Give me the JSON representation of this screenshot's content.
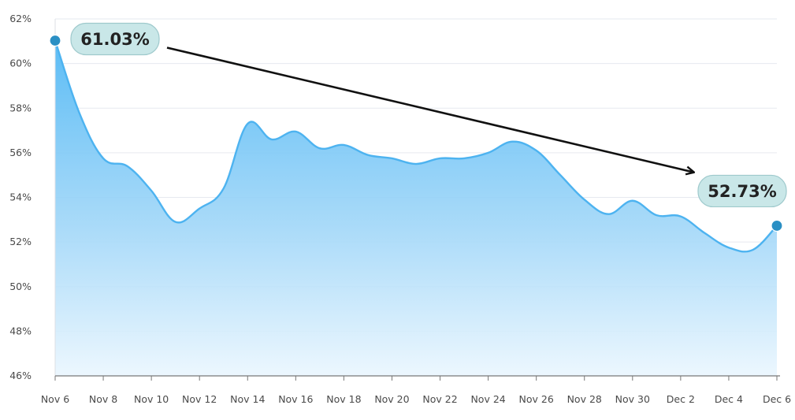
{
  "chart_data": {
    "type": "area",
    "title": "",
    "xlabel": "",
    "ylabel": "",
    "ylim": [
      46,
      62
    ],
    "y_ticks": [
      "46%",
      "48%",
      "50%",
      "52%",
      "54%",
      "56%",
      "58%",
      "60%",
      "62%"
    ],
    "x_tick_labels": [
      "Nov 6",
      "Nov 8",
      "Nov 10",
      "Nov 12",
      "Nov 14",
      "Nov 16",
      "Nov 18",
      "Nov 20",
      "Nov 22",
      "Nov 24",
      "Nov 26",
      "Nov 28",
      "Nov 30",
      "Dec 2",
      "Dec 4",
      "Dec 6"
    ],
    "grid": true,
    "legend": "none",
    "colors": {
      "line": "#4db3f0",
      "fill_top": "#5bbcf5",
      "fill_bottom": "#eaf6fe",
      "marker": "#2a8fc4",
      "axis": "#777777"
    },
    "series": [
      {
        "values": [
          {
            "x": "Nov 6",
            "y": 61.03
          },
          {
            "x": "Nov 7",
            "y": 57.8
          },
          {
            "x": "Nov 8",
            "y": 55.75
          },
          {
            "x": "Nov 9",
            "y": 55.4
          },
          {
            "x": "Nov 10",
            "y": 54.3
          },
          {
            "x": "Nov 11",
            "y": 52.9
          },
          {
            "x": "Nov 12",
            "y": 53.5
          },
          {
            "x": "Nov 13",
            "y": 54.4
          },
          {
            "x": "Nov 14",
            "y": 57.3
          },
          {
            "x": "Nov 15",
            "y": 56.6
          },
          {
            "x": "Nov 16",
            "y": 56.95
          },
          {
            "x": "Nov 17",
            "y": 56.2
          },
          {
            "x": "Nov 18",
            "y": 56.35
          },
          {
            "x": "Nov 19",
            "y": 55.9
          },
          {
            "x": "Nov 20",
            "y": 55.75
          },
          {
            "x": "Nov 21",
            "y": 55.5
          },
          {
            "x": "Nov 22",
            "y": 55.75
          },
          {
            "x": "Nov 23",
            "y": 55.75
          },
          {
            "x": "Nov 24",
            "y": 56.0
          },
          {
            "x": "Nov 25",
            "y": 56.5
          },
          {
            "x": "Nov 26",
            "y": 56.1
          },
          {
            "x": "Nov 27",
            "y": 55.0
          },
          {
            "x": "Nov 28",
            "y": 53.9
          },
          {
            "x": "Nov 29",
            "y": 53.25
          },
          {
            "x": "Nov 30",
            "y": 53.85
          },
          {
            "x": "Dec 1",
            "y": 53.2
          },
          {
            "x": "Dec 2",
            "y": 53.15
          },
          {
            "x": "Dec 3",
            "y": 52.4
          },
          {
            "x": "Dec 4",
            "y": 51.75
          },
          {
            "x": "Dec 5",
            "y": 51.65
          },
          {
            "x": "Dec 6",
            "y": 52.73
          }
        ]
      }
    ],
    "annotations": [
      {
        "text": "61.03%",
        "x": "Nov 6",
        "y": 61.03
      },
      {
        "text": "52.73%",
        "x": "Dec 6",
        "y": 52.73
      }
    ]
  }
}
